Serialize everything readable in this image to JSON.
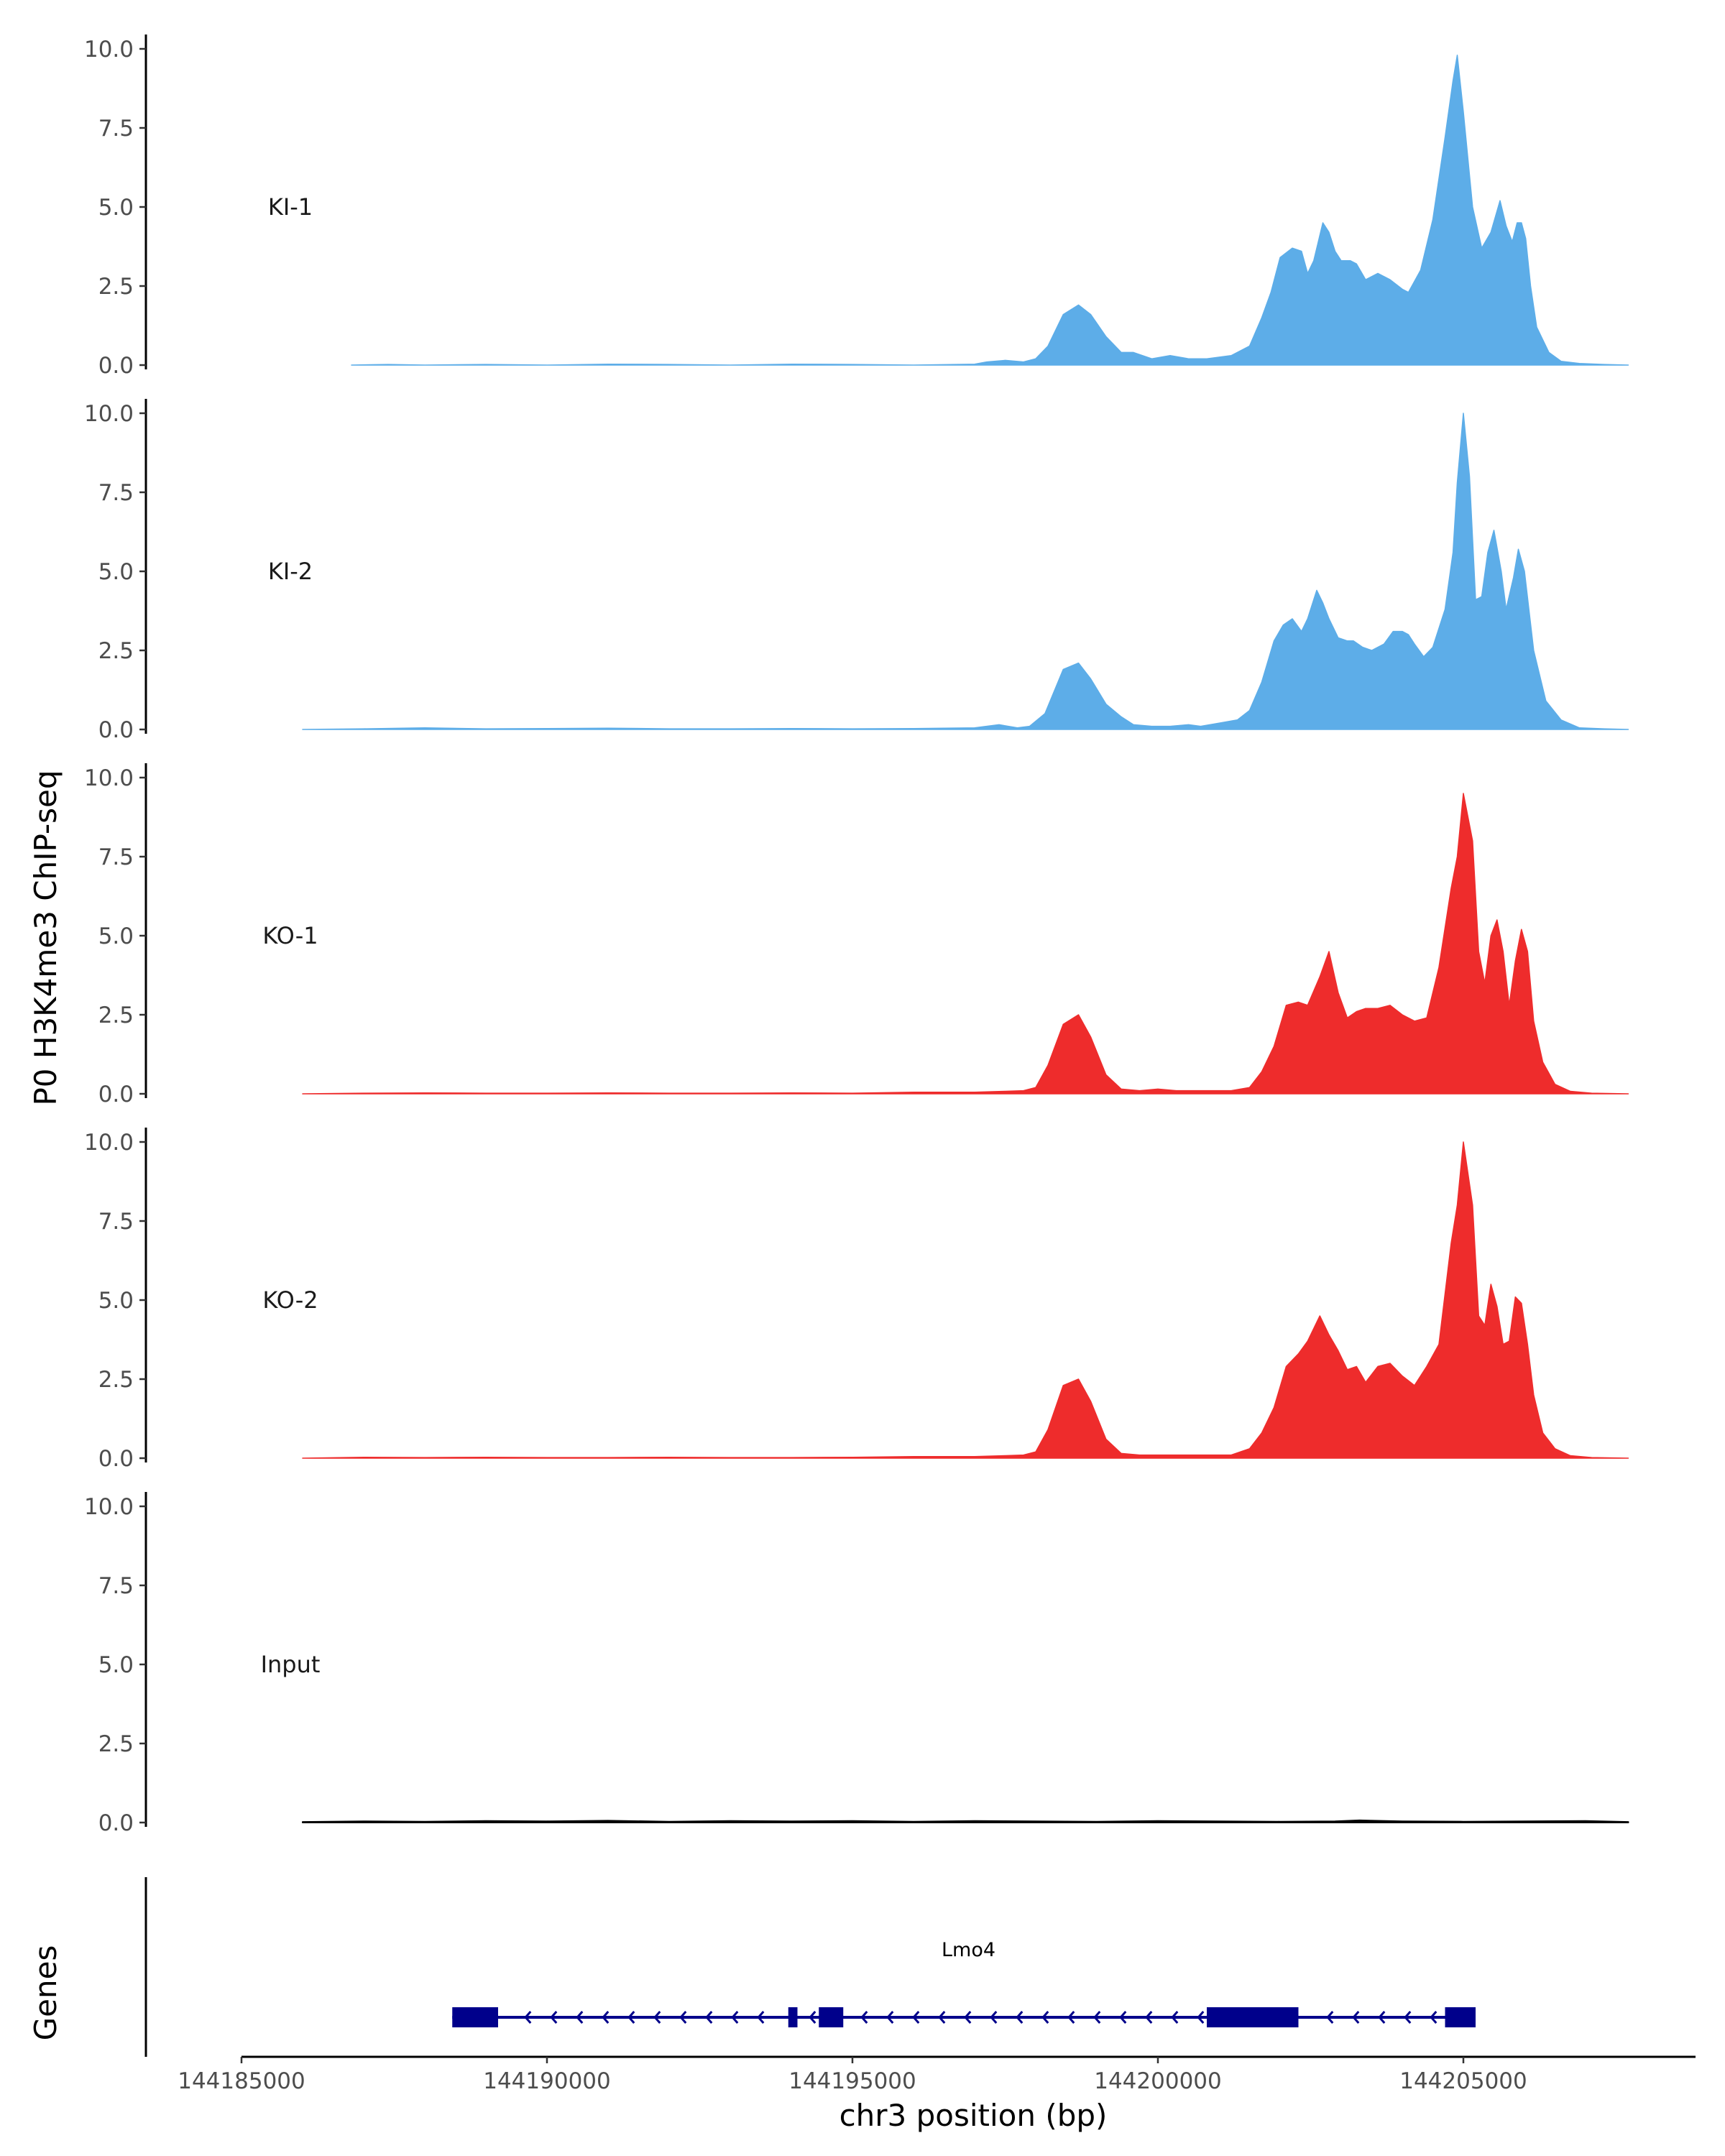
{
  "chart_data": {
    "type": "area",
    "title": "",
    "ylabel": "P0 H3K4me3 ChIP-seq",
    "xlabel": "chr3 position (bp)",
    "gene_track_label": "Genes",
    "xlim": [
      144185000,
      144208800
    ],
    "ylim": [
      0,
      10.5
    ],
    "x_ticks": [
      144185000,
      144190000,
      144195000,
      144200000,
      144205000
    ],
    "x_tick_labels": [
      "144185000",
      "144190000",
      "144195000",
      "144200000",
      "144205000"
    ],
    "y_ticks": [
      0,
      2.5,
      5,
      7.5,
      10
    ],
    "y_tick_labels": [
      "0.0",
      "2.5",
      "5.0",
      "7.5",
      "10.0"
    ],
    "colors": {
      "KI": "#5dade8",
      "KO": "#ee2c2c",
      "Input": "#000000",
      "gene": "#00008b"
    },
    "series": [
      {
        "name": "KI-1",
        "color": "#5dade8",
        "x": [
          144186800,
          144187400,
          144188000,
          144189000,
          144190000,
          144191000,
          144192000,
          144193000,
          144194000,
          144195000,
          144196000,
          144197000,
          144197200,
          144197500,
          144197800,
          144198000,
          144198200,
          144198450,
          144198700,
          144198900,
          144199150,
          144199400,
          144199600,
          144199900,
          144200200,
          144200500,
          144200800,
          144201200,
          144201500,
          144201700,
          144201850,
          144202000,
          144202200,
          144202350,
          144202450,
          144202550,
          144202700,
          144202800,
          144202900,
          144203000,
          144203150,
          144203250,
          144203400,
          144203600,
          144203800,
          144204000,
          144204100,
          144204300,
          144204500,
          144204700,
          144204830,
          144204900,
          144205000,
          144205150,
          144205300,
          144205450,
          144205600,
          144205700,
          144205800,
          144205880,
          144205950,
          144206020,
          144206100,
          144206200,
          144206400,
          144206600,
          144206900,
          144207300,
          144207700
        ],
        "values": [
          0,
          0.02,
          0,
          0.02,
          0,
          0.03,
          0.02,
          0,
          0.03,
          0.02,
          0,
          0.03,
          0.1,
          0.15,
          0.1,
          0.2,
          0.6,
          1.6,
          1.9,
          1.6,
          0.9,
          0.4,
          0.4,
          0.2,
          0.3,
          0.2,
          0.2,
          0.3,
          0.6,
          1.5,
          2.3,
          3.4,
          3.7,
          3.6,
          2.9,
          3.3,
          4.5,
          4.2,
          3.6,
          3.3,
          3.3,
          3.2,
          2.7,
          2.9,
          2.7,
          2.4,
          2.3,
          3.0,
          4.6,
          7.2,
          9.0,
          9.8,
          8.0,
          5.0,
          3.7,
          4.2,
          5.2,
          4.4,
          3.9,
          4.5,
          4.5,
          4.0,
          2.5,
          1.2,
          0.4,
          0.12,
          0.05,
          0.02,
          0
        ],
        "annotation_x": 144185800
      },
      {
        "name": "KI-2",
        "color": "#5dade8",
        "x": [
          144186000,
          144187000,
          144188000,
          144189000,
          144190000,
          144191000,
          144192000,
          144193000,
          144194000,
          144195000,
          144196000,
          144197000,
          144197400,
          144197700,
          144197900,
          144198150,
          144198450,
          144198700,
          144198900,
          144199150,
          144199400,
          144199600,
          144199900,
          144200200,
          144200500,
          144200700,
          144201000,
          144201300,
          144201500,
          144201700,
          144201900,
          144202050,
          144202200,
          144202350,
          144202450,
          144202600,
          144202700,
          144202800,
          144202950,
          144203100,
          144203200,
          144203350,
          144203500,
          144203700,
          144203850,
          144204000,
          144204100,
          144204200,
          144204350,
          144204500,
          144204700,
          144204830,
          144204900,
          144205000,
          144205100,
          144205200,
          144205300,
          144205400,
          144205500,
          144205620,
          144205700,
          144205820,
          144205900,
          144206000,
          144206150,
          144206350,
          144206600,
          144206900,
          144207300,
          144207700
        ],
        "values": [
          0,
          0.02,
          0.05,
          0.02,
          0.03,
          0.04,
          0.02,
          0.02,
          0.03,
          0.02,
          0.03,
          0.05,
          0.15,
          0.05,
          0.1,
          0.5,
          1.9,
          2.1,
          1.6,
          0.8,
          0.4,
          0.15,
          0.1,
          0.1,
          0.15,
          0.1,
          0.2,
          0.3,
          0.6,
          1.5,
          2.8,
          3.3,
          3.5,
          3.1,
          3.5,
          4.4,
          4.0,
          3.5,
          2.9,
          2.8,
          2.8,
          2.6,
          2.5,
          2.7,
          3.1,
          3.1,
          3.0,
          2.7,
          2.3,
          2.6,
          3.8,
          5.6,
          7.8,
          10.0,
          8.0,
          4.1,
          4.2,
          5.6,
          6.3,
          5.0,
          3.8,
          4.8,
          5.7,
          5.0,
          2.5,
          0.9,
          0.3,
          0.05,
          0.02,
          0
        ],
        "annotation_x": 144185800
      },
      {
        "name": "KO-1",
        "color": "#ee2c2c",
        "x": [
          144186000,
          144187000,
          144188000,
          144189000,
          144190000,
          144191000,
          144192000,
          144193000,
          144194000,
          144195000,
          144196000,
          144197000,
          144197500,
          144197800,
          144198000,
          144198200,
          144198450,
          144198700,
          144198900,
          144199150,
          144199400,
          144199700,
          144200000,
          144200300,
          144200600,
          144200900,
          144201200,
          144201500,
          144201700,
          144201900,
          144202100,
          144202300,
          144202450,
          144202650,
          144202800,
          144202950,
          144203100,
          144203250,
          144203400,
          144203600,
          144203800,
          144204000,
          144204200,
          144204400,
          144204600,
          144204800,
          144204900,
          144205000,
          144205150,
          144205250,
          144205350,
          144205450,
          144205550,
          144205650,
          144205750,
          144205850,
          144205950,
          144206050,
          144206150,
          144206300,
          144206500,
          144206750,
          144207100,
          144207700
        ],
        "values": [
          0,
          0.02,
          0.03,
          0.02,
          0.02,
          0.03,
          0.02,
          0.02,
          0.03,
          0.02,
          0.05,
          0.05,
          0.08,
          0.1,
          0.2,
          0.9,
          2.2,
          2.5,
          1.8,
          0.6,
          0.15,
          0.1,
          0.15,
          0.1,
          0.1,
          0.1,
          0.1,
          0.2,
          0.7,
          1.5,
          2.8,
          2.9,
          2.8,
          3.7,
          4.5,
          3.2,
          2.4,
          2.6,
          2.7,
          2.7,
          2.8,
          2.5,
          2.3,
          2.4,
          4.0,
          6.5,
          7.5,
          9.5,
          8.0,
          4.5,
          3.5,
          5.0,
          5.5,
          4.5,
          2.8,
          4.2,
          5.2,
          4.5,
          2.3,
          1.0,
          0.3,
          0.08,
          0.02,
          0
        ],
        "annotation_x": 144185800
      },
      {
        "name": "KO-2",
        "color": "#ee2c2c",
        "x": [
          144186000,
          144187000,
          144188000,
          144189000,
          144190000,
          144191000,
          144192000,
          144193000,
          144194000,
          144195000,
          144196000,
          144197000,
          144197500,
          144197800,
          144198000,
          144198200,
          144198450,
          144198700,
          144198900,
          144199150,
          144199400,
          144199700,
          144200000,
          144200300,
          144200600,
          144200900,
          144201200,
          144201500,
          144201700,
          144201900,
          144202100,
          144202300,
          144202450,
          144202650,
          144202800,
          144202950,
          144203100,
          144203250,
          144203400,
          144203600,
          144203800,
          144204000,
          144204200,
          144204400,
          144204600,
          144204800,
          144204900,
          144205000,
          144205150,
          144205250,
          144205350,
          144205450,
          144205550,
          144205650,
          144205750,
          144205850,
          144205950,
          144206050,
          144206150,
          144206300,
          144206500,
          144206750,
          144207100,
          144207700
        ],
        "values": [
          0,
          0.03,
          0.02,
          0.03,
          0.02,
          0.02,
          0.03,
          0.02,
          0.02,
          0.03,
          0.05,
          0.05,
          0.08,
          0.1,
          0.2,
          0.9,
          2.3,
          2.5,
          1.8,
          0.6,
          0.15,
          0.1,
          0.1,
          0.1,
          0.1,
          0.1,
          0.1,
          0.3,
          0.8,
          1.6,
          2.9,
          3.3,
          3.7,
          4.5,
          3.9,
          3.4,
          2.8,
          2.9,
          2.4,
          2.9,
          3.0,
          2.6,
          2.3,
          2.9,
          3.6,
          6.8,
          8.0,
          10.0,
          8.0,
          4.5,
          4.2,
          5.5,
          4.8,
          3.6,
          3.7,
          5.1,
          4.9,
          3.6,
          2.0,
          0.8,
          0.3,
          0.08,
          0.02,
          0
        ],
        "annotation_x": 144185800
      },
      {
        "name": "Input",
        "color": "#000000",
        "x": [
          144186000,
          144187000,
          144188000,
          144189000,
          144190000,
          144191000,
          144192000,
          144193000,
          144194000,
          144195000,
          144196000,
          144197000,
          144198000,
          144199000,
          144200000,
          144201000,
          144202000,
          144202900,
          144203300,
          144204000,
          144205000,
          144206000,
          144207000,
          144207700
        ],
        "values": [
          0.02,
          0.04,
          0.03,
          0.05,
          0.04,
          0.06,
          0.03,
          0.05,
          0.04,
          0.05,
          0.03,
          0.05,
          0.04,
          0.03,
          0.05,
          0.04,
          0.03,
          0.04,
          0.07,
          0.04,
          0.03,
          0.04,
          0.05,
          0.02
        ],
        "annotation_x": 144185800
      }
    ],
    "gene": {
      "name": "Lmo4",
      "strand": "-",
      "start": 144188450,
      "end": 144205200,
      "exons": [
        [
          144188450,
          144189200
        ],
        [
          144193950,
          144194100
        ],
        [
          144194450,
          144194850
        ],
        [
          144200800,
          144202300
        ],
        [
          144204700,
          144205200
        ]
      ],
      "label_x": 144196900
    }
  }
}
